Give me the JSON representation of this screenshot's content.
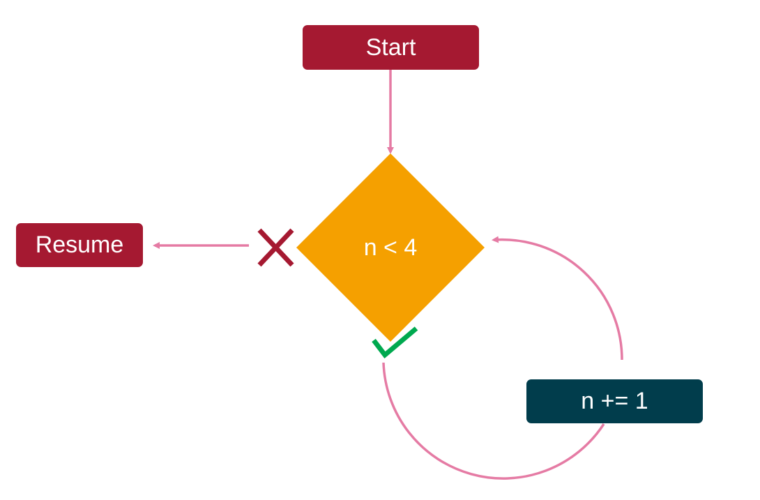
{
  "colors": {
    "terminal": "#A51931",
    "decision": "#F5A000",
    "process": "#013D4C",
    "connector": "#E57BA4",
    "no_mark": "#A51931",
    "yes_mark": "#00A94F"
  },
  "nodes": {
    "start": {
      "label": "Start"
    },
    "resume": {
      "label": "Resume"
    },
    "decision": {
      "label": "n < 4"
    },
    "increment": {
      "label": "n += 1"
    }
  },
  "markers": {
    "false_branch": "x-mark-icon",
    "true_branch": "check-mark-icon"
  },
  "edges": [
    {
      "from": "start",
      "to": "decision"
    },
    {
      "from": "decision",
      "to": "resume",
      "condition": "false"
    },
    {
      "from": "decision",
      "to": "increment",
      "condition": "true"
    },
    {
      "from": "increment",
      "to": "decision"
    }
  ]
}
